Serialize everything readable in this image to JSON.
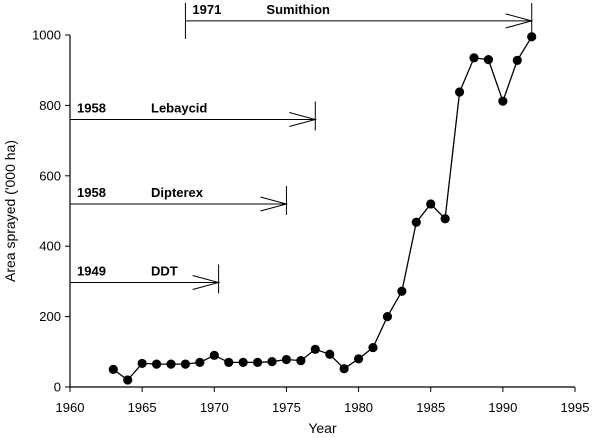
{
  "chart_data": {
    "type": "line",
    "xlabel": "Year",
    "ylabel": "Area sprayed ('000 ha)",
    "xlim": [
      1960,
      1995
    ],
    "ylim": [
      0,
      1000
    ],
    "xticks": [
      1960,
      1965,
      1970,
      1975,
      1980,
      1985,
      1990,
      1995
    ],
    "yticks": [
      0,
      200,
      400,
      600,
      800,
      1000
    ],
    "grid": false,
    "series": [
      {
        "x": [
          1963,
          1964,
          1965,
          1966,
          1967,
          1968,
          1969,
          1970,
          1971,
          1972,
          1973,
          1974,
          1975,
          1976,
          1977,
          1978,
          1979,
          1980,
          1981,
          1982,
          1983,
          1984,
          1985,
          1986,
          1987,
          1988,
          1989,
          1990,
          1991,
          1992
        ],
        "y": [
          50,
          20,
          67,
          65,
          65,
          65,
          70,
          90,
          70,
          70,
          70,
          72,
          78,
          75,
          107,
          93,
          52,
          80,
          112,
          200,
          272,
          468,
          520,
          478,
          838,
          935,
          930,
          812,
          928,
          995
        ]
      }
    ],
    "annotations": [
      {
        "year_label": "1971",
        "name": "Sumithion",
        "start": 1968,
        "end": 1992,
        "level": 1040
      },
      {
        "year_label": "1958",
        "name": "Lebaycid",
        "start": 1960,
        "end": 1977,
        "level": 760
      },
      {
        "year_label": "1958",
        "name": "Dipterex",
        "start": 1960,
        "end": 1975,
        "level": 520
      },
      {
        "year_label": "1949",
        "name": "DDT",
        "start": 1960,
        "end": 1970.3,
        "level": 297
      }
    ]
  }
}
